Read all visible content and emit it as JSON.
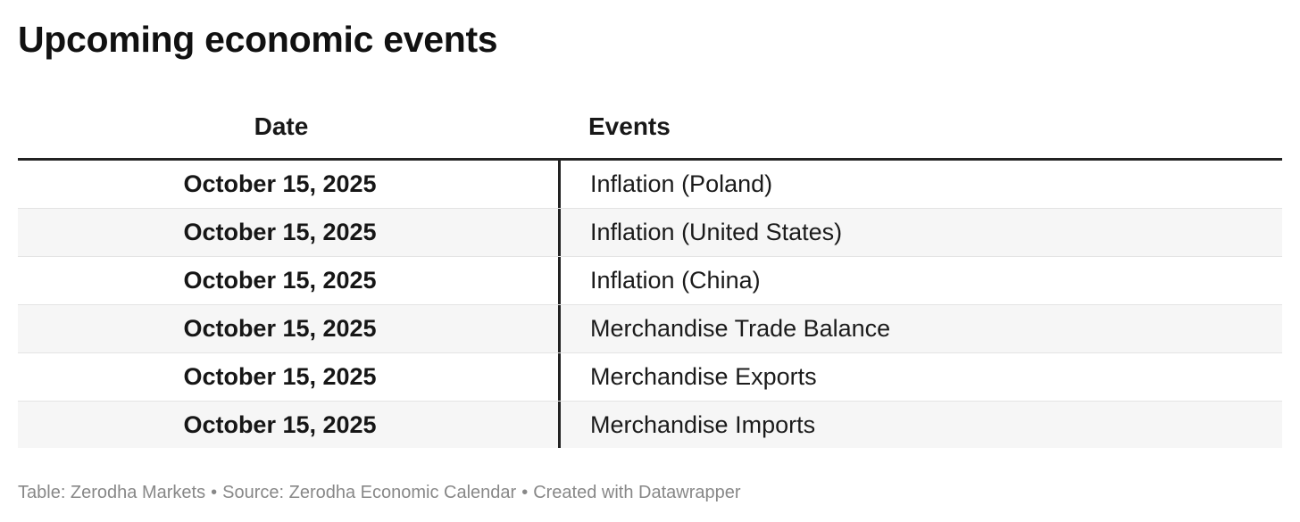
{
  "title": "Upcoming economic events",
  "chart_data": {
    "type": "table",
    "columns": [
      "Date",
      "Events"
    ],
    "rows": [
      {
        "date": "October 15, 2025",
        "event": "Inflation (Poland)"
      },
      {
        "date": "October 15, 2025",
        "event": "Inflation (United States)"
      },
      {
        "date": "October 15, 2025",
        "event": "Inflation (China)"
      },
      {
        "date": "October 15, 2025",
        "event": "Merchandise Trade Balance"
      },
      {
        "date": "October 15, 2025",
        "event": "Merchandise Exports"
      },
      {
        "date": "October 15, 2025",
        "event": "Merchandise Imports"
      }
    ]
  },
  "footer": {
    "table_credit": "Table: Zerodha Markets",
    "source": "Source: Zerodha Economic Calendar",
    "created_with": "Created with Datawrapper",
    "separator": "•"
  }
}
